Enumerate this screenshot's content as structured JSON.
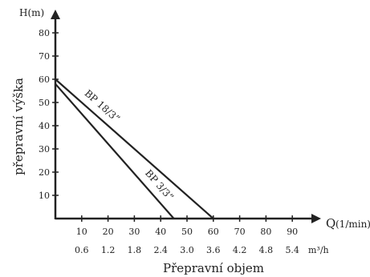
{
  "chart_data": {
    "type": "line",
    "ylabel": "přepravní výška",
    "xlabel": "Přepravní objem",
    "y_axis_title": "H(m)",
    "x_axis_title": "Q",
    "x_axis_unit": "(1/min)",
    "secondary_x_unit": "m³/h",
    "xlim": [
      0,
      100
    ],
    "ylim": [
      0,
      80
    ],
    "x_ticks": [
      "10",
      "20",
      "30",
      "40",
      "50",
      "60",
      "70",
      "80",
      "90"
    ],
    "x_tick_values": [
      10,
      20,
      30,
      40,
      50,
      60,
      70,
      80,
      90
    ],
    "secondary_x_ticks": [
      "0.6",
      "1.2",
      "1.8",
      "2.4",
      "3.0",
      "3.6",
      "4.2",
      "4.8",
      "5.4"
    ],
    "y_ticks": [
      "10",
      "20",
      "30",
      "40",
      "50",
      "60",
      "70",
      "80"
    ],
    "y_tick_values": [
      10,
      20,
      30,
      40,
      50,
      60,
      70,
      80
    ],
    "grid": false,
    "series": [
      {
        "name": "BP 18/3”",
        "x": [
          0,
          60
        ],
        "y": [
          60,
          0
        ]
      },
      {
        "name": "BP 3/3”",
        "x": [
          0,
          45
        ],
        "y": [
          58,
          0
        ]
      }
    ],
    "colors": {
      "line": "#222222",
      "text": "#222222",
      "background": "#ffffff"
    }
  }
}
